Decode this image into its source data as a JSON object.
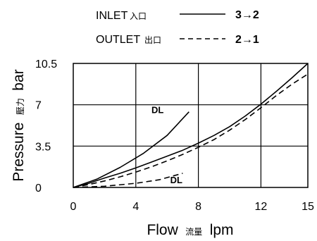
{
  "chart_data": {
    "type": "line",
    "xlabel": "Flow",
    "xlabel_cjk": "流量",
    "xunit": "lpm",
    "ylabel": "Pressure",
    "ylabel_cjk": "壓力",
    "yunit": "bar",
    "xlim": [
      0,
      15
    ],
    "ylim": [
      0,
      10.5
    ],
    "xticks": [
      "0",
      "4",
      "8",
      "12",
      "15"
    ],
    "yticks": [
      "0",
      "3.5",
      "7",
      "10.5"
    ],
    "grid": true,
    "legend": [
      {
        "label": "INLET",
        "label_cjk": "入口",
        "style": "solid",
        "path": "3→2"
      },
      {
        "label": "OUTLET",
        "label_cjk": "出口",
        "style": "dashed",
        "path": "2→1"
      }
    ],
    "series": [
      {
        "style": "solid",
        "points": [
          [
            0,
            0
          ],
          [
            1,
            0.35
          ],
          [
            2,
            0.8
          ],
          [
            3,
            1.2
          ],
          [
            4,
            1.65
          ],
          [
            5,
            2.15
          ],
          [
            6,
            2.65
          ],
          [
            7,
            3.15
          ],
          [
            8,
            3.75
          ],
          [
            9,
            4.4
          ],
          [
            10,
            5.15
          ],
          [
            11,
            6.05
          ],
          [
            12,
            7.05
          ],
          [
            13,
            8.15
          ],
          [
            14,
            9.3
          ],
          [
            15,
            10.5
          ]
        ]
      },
      {
        "style": "dashed",
        "points": [
          [
            0,
            0
          ],
          [
            1,
            0.25
          ],
          [
            2,
            0.55
          ],
          [
            3,
            0.9
          ],
          [
            4,
            1.3
          ],
          [
            5,
            1.75
          ],
          [
            6,
            2.25
          ],
          [
            7,
            2.8
          ],
          [
            8,
            3.4
          ],
          [
            9,
            4.05
          ],
          [
            10,
            4.85
          ],
          [
            11,
            5.75
          ],
          [
            12,
            6.75
          ],
          [
            13,
            7.8
          ],
          [
            14,
            8.75
          ],
          [
            15,
            9.6
          ]
        ]
      },
      {
        "style": "solid",
        "label": "DL",
        "points": [
          [
            0,
            0
          ],
          [
            1.5,
            0.7
          ],
          [
            3,
            1.7
          ],
          [
            4.5,
            2.9
          ],
          [
            6,
            4.4
          ],
          [
            7.4,
            6.4
          ]
        ]
      },
      {
        "style": "dashed",
        "label": "DL",
        "points": [
          [
            0,
            0
          ],
          [
            2,
            0.1
          ],
          [
            4,
            0.35
          ],
          [
            5.5,
            0.65
          ],
          [
            7,
            1.2
          ]
        ]
      }
    ]
  }
}
